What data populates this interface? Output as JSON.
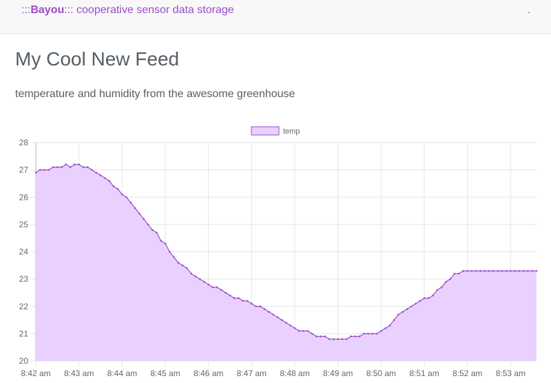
{
  "navbar": {
    "brand_prefix": ":::",
    "brand_name": "Bayou",
    "brand_suffix": "::: cooperative sensor data storage",
    "right_link": "."
  },
  "page": {
    "title": "My Cool New Feed",
    "subtitle": "temperature and humidity from the awesome greenhouse"
  },
  "colors": {
    "accent": "#9b4dca",
    "series_fill": "#e8d1fe",
    "series_line": "#9b4dca"
  },
  "chart_data": {
    "type": "area",
    "ylim": [
      20,
      28
    ],
    "yticks": [
      "20",
      "21",
      "22",
      "23",
      "24",
      "25",
      "26",
      "27",
      "28"
    ],
    "xlim": [
      0,
      11.6
    ],
    "xticks": [
      "8:42 am",
      "8:43 am",
      "8:44 am",
      "8:45 am",
      "8:46 am",
      "8:47 am",
      "8:48 am",
      "8:49 am",
      "8:50 am",
      "8:51 am",
      "8:52 am",
      "8:53 am"
    ],
    "grid": true,
    "legend_position": "top-center",
    "series": [
      {
        "name": "temp",
        "x": [
          0,
          0.1,
          0.2,
          0.3,
          0.4,
          0.5,
          0.6,
          0.7,
          0.8,
          0.9,
          1.0,
          1.1,
          1.2,
          1.3,
          1.4,
          1.5,
          1.6,
          1.7,
          1.8,
          1.9,
          2.0,
          2.1,
          2.2,
          2.3,
          2.4,
          2.5,
          2.6,
          2.7,
          2.8,
          2.9,
          3.0,
          3.1,
          3.2,
          3.3,
          3.4,
          3.5,
          3.6,
          3.7,
          3.8,
          3.9,
          4.0,
          4.1,
          4.2,
          4.3,
          4.4,
          4.5,
          4.6,
          4.7,
          4.8,
          4.9,
          5.0,
          5.1,
          5.2,
          5.3,
          5.4,
          5.5,
          5.6,
          5.7,
          5.8,
          5.9,
          6.0,
          6.1,
          6.2,
          6.3,
          6.4,
          6.5,
          6.6,
          6.7,
          6.8,
          6.9,
          7.0,
          7.1,
          7.2,
          7.3,
          7.4,
          7.5,
          7.6,
          7.7,
          7.8,
          7.9,
          8.0,
          8.1,
          8.2,
          8.3,
          8.4,
          8.5,
          8.6,
          8.7,
          8.8,
          8.9,
          9.0,
          9.1,
          9.2,
          9.3,
          9.4,
          9.5,
          9.6,
          9.7,
          9.8,
          9.9,
          10.0,
          10.1,
          10.2,
          10.3,
          10.4,
          10.5,
          10.6,
          10.7,
          10.8,
          10.9,
          11.0,
          11.1,
          11.2,
          11.3,
          11.4,
          11.5,
          11.6
        ],
        "values": [
          26.9,
          27.0,
          27.0,
          27.0,
          27.1,
          27.1,
          27.1,
          27.2,
          27.1,
          27.2,
          27.2,
          27.1,
          27.1,
          27.0,
          26.9,
          26.8,
          26.7,
          26.6,
          26.4,
          26.3,
          26.1,
          26.0,
          25.8,
          25.6,
          25.4,
          25.2,
          25.0,
          24.8,
          24.7,
          24.4,
          24.3,
          24.0,
          23.8,
          23.6,
          23.5,
          23.4,
          23.2,
          23.1,
          23.0,
          22.9,
          22.8,
          22.7,
          22.7,
          22.6,
          22.5,
          22.4,
          22.3,
          22.3,
          22.2,
          22.2,
          22.1,
          22.0,
          22.0,
          21.9,
          21.8,
          21.7,
          21.6,
          21.5,
          21.4,
          21.3,
          21.2,
          21.1,
          21.1,
          21.1,
          21.0,
          20.9,
          20.9,
          20.9,
          20.8,
          20.8,
          20.8,
          20.8,
          20.8,
          20.9,
          20.9,
          20.9,
          21.0,
          21.0,
          21.0,
          21.0,
          21.1,
          21.2,
          21.3,
          21.5,
          21.7,
          21.8,
          21.9,
          22.0,
          22.1,
          22.2,
          22.3,
          22.3,
          22.4,
          22.6,
          22.7,
          22.9,
          23.0,
          23.2,
          23.2,
          23.3,
          23.3,
          23.3,
          23.3,
          23.3,
          23.3,
          23.3,
          23.3,
          23.3,
          23.3,
          23.3,
          23.3,
          23.3,
          23.3,
          23.3,
          23.3,
          23.3,
          23.3
        ]
      }
    ]
  }
}
